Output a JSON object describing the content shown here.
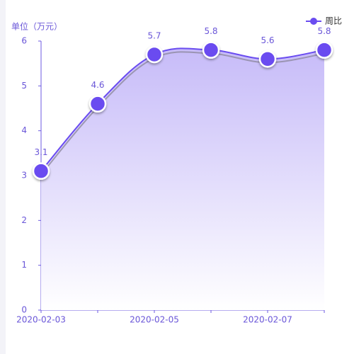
{
  "chart_data": {
    "type": "line",
    "y_label": "单位（万元）",
    "categories": [
      "2020-02-03",
      null,
      "2020-02-05",
      null,
      "2020-02-07",
      null
    ],
    "series": [
      {
        "name": "周比",
        "color": "#6a4cf0",
        "values": [
          3.1,
          4.6,
          5.7,
          5.8,
          5.6,
          5.8
        ]
      }
    ],
    "ylim": [
      0,
      6
    ],
    "yticks": [
      0,
      1,
      2,
      3,
      4,
      5,
      6
    ],
    "smooth": true,
    "area": true,
    "data_labels": true
  }
}
